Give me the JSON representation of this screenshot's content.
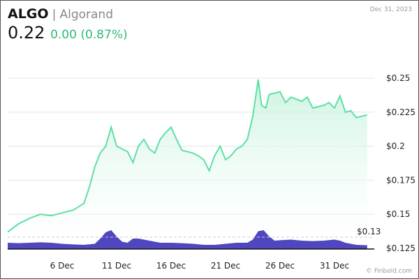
{
  "header": {
    "symbol": "ALGO",
    "separator": "|",
    "name": "Algorand",
    "price": "0.22",
    "change": "0.00 (0.87%)",
    "date": "Dec 31, 2023",
    "credit": "© Finbold.com"
  },
  "colors": {
    "line": "#5de0a4",
    "fill_top": "#c9f3df",
    "volume": "#5046c0",
    "change": "#2eb87a"
  },
  "chart_data": {
    "type": "line",
    "title": "",
    "xlabel": "",
    "ylabel": "",
    "ylim": [
      0.12,
      0.255
    ],
    "grid": true,
    "x_ticks": [
      {
        "day": 6,
        "label": "6 Dec"
      },
      {
        "day": 11,
        "label": "11 Dec"
      },
      {
        "day": 16,
        "label": "16 Dec"
      },
      {
        "day": 21,
        "label": "21 Dec"
      },
      {
        "day": 26,
        "label": "26 Dec"
      },
      {
        "day": 31,
        "label": "31 Dec"
      }
    ],
    "y_ticks": [
      {
        "v": 0.25,
        "label": "$0.25"
      },
      {
        "v": 0.225,
        "label": "$0.225"
      },
      {
        "v": 0.2,
        "label": "$0.2"
      },
      {
        "v": 0.175,
        "label": "$0.175"
      },
      {
        "v": 0.15,
        "label": "$0.15"
      },
      {
        "v": 0.125,
        "label": "$0.125"
      }
    ],
    "reference_line": {
      "v": 0.13,
      "label": "$0.13"
    },
    "price": [
      [
        1,
        0.137
      ],
      [
        2,
        0.143
      ],
      [
        3,
        0.147
      ],
      [
        4,
        0.15
      ],
      [
        5,
        0.149
      ],
      [
        6,
        0.151
      ],
      [
        7,
        0.153
      ],
      [
        8,
        0.158
      ],
      [
        8.5,
        0.17
      ],
      [
        9,
        0.185
      ],
      [
        9.5,
        0.195
      ],
      [
        10,
        0.2
      ],
      [
        10.5,
        0.214
      ],
      [
        11,
        0.2
      ],
      [
        11.5,
        0.198
      ],
      [
        12,
        0.196
      ],
      [
        12.5,
        0.188
      ],
      [
        13,
        0.2
      ],
      [
        13.5,
        0.205
      ],
      [
        14,
        0.198
      ],
      [
        14.5,
        0.195
      ],
      [
        15,
        0.205
      ],
      [
        15.5,
        0.21
      ],
      [
        16,
        0.214
      ],
      [
        16.5,
        0.205
      ],
      [
        17,
        0.197
      ],
      [
        18,
        0.195
      ],
      [
        18.5,
        0.193
      ],
      [
        19,
        0.19
      ],
      [
        19.5,
        0.182
      ],
      [
        20,
        0.193
      ],
      [
        20.5,
        0.2
      ],
      [
        21,
        0.19
      ],
      [
        21.5,
        0.193
      ],
      [
        22,
        0.198
      ],
      [
        22.5,
        0.2
      ],
      [
        23,
        0.205
      ],
      [
        23.5,
        0.222
      ],
      [
        24,
        0.249
      ],
      [
        24.3,
        0.23
      ],
      [
        24.7,
        0.228
      ],
      [
        25,
        0.238
      ],
      [
        26,
        0.24
      ],
      [
        26.5,
        0.232
      ],
      [
        27,
        0.236
      ],
      [
        28,
        0.233
      ],
      [
        28.5,
        0.236
      ],
      [
        29,
        0.228
      ],
      [
        30,
        0.23
      ],
      [
        30.5,
        0.232
      ],
      [
        31,
        0.228
      ],
      [
        31.5,
        0.237
      ],
      [
        32,
        0.225
      ],
      [
        32.5,
        0.226
      ],
      [
        33,
        0.221
      ],
      [
        34,
        0.223
      ]
    ],
    "volume": [
      [
        1,
        0.3
      ],
      [
        2,
        0.28
      ],
      [
        3,
        0.3
      ],
      [
        4,
        0.32
      ],
      [
        5,
        0.3
      ],
      [
        6,
        0.25
      ],
      [
        7,
        0.22
      ],
      [
        8,
        0.2
      ],
      [
        9,
        0.25
      ],
      [
        9.5,
        0.5
      ],
      [
        10,
        0.8
      ],
      [
        10.5,
        0.9
      ],
      [
        11,
        0.6
      ],
      [
        11.5,
        0.35
      ],
      [
        12,
        0.3
      ],
      [
        12.5,
        0.5
      ],
      [
        13,
        0.5
      ],
      [
        14,
        0.4
      ],
      [
        15,
        0.3
      ],
      [
        16,
        0.3
      ],
      [
        17,
        0.28
      ],
      [
        18,
        0.25
      ],
      [
        19,
        0.2
      ],
      [
        20,
        0.2
      ],
      [
        21,
        0.25
      ],
      [
        22,
        0.3
      ],
      [
        23,
        0.3
      ],
      [
        23.5,
        0.45
      ],
      [
        24,
        0.85
      ],
      [
        24.5,
        0.9
      ],
      [
        25,
        0.6
      ],
      [
        25.5,
        0.4
      ],
      [
        26,
        0.42
      ],
      [
        27,
        0.45
      ],
      [
        28,
        0.4
      ],
      [
        29,
        0.38
      ],
      [
        30,
        0.4
      ],
      [
        31,
        0.45
      ],
      [
        31.5,
        0.4
      ],
      [
        32,
        0.3
      ],
      [
        33,
        0.2
      ],
      [
        34,
        0.18
      ]
    ]
  }
}
